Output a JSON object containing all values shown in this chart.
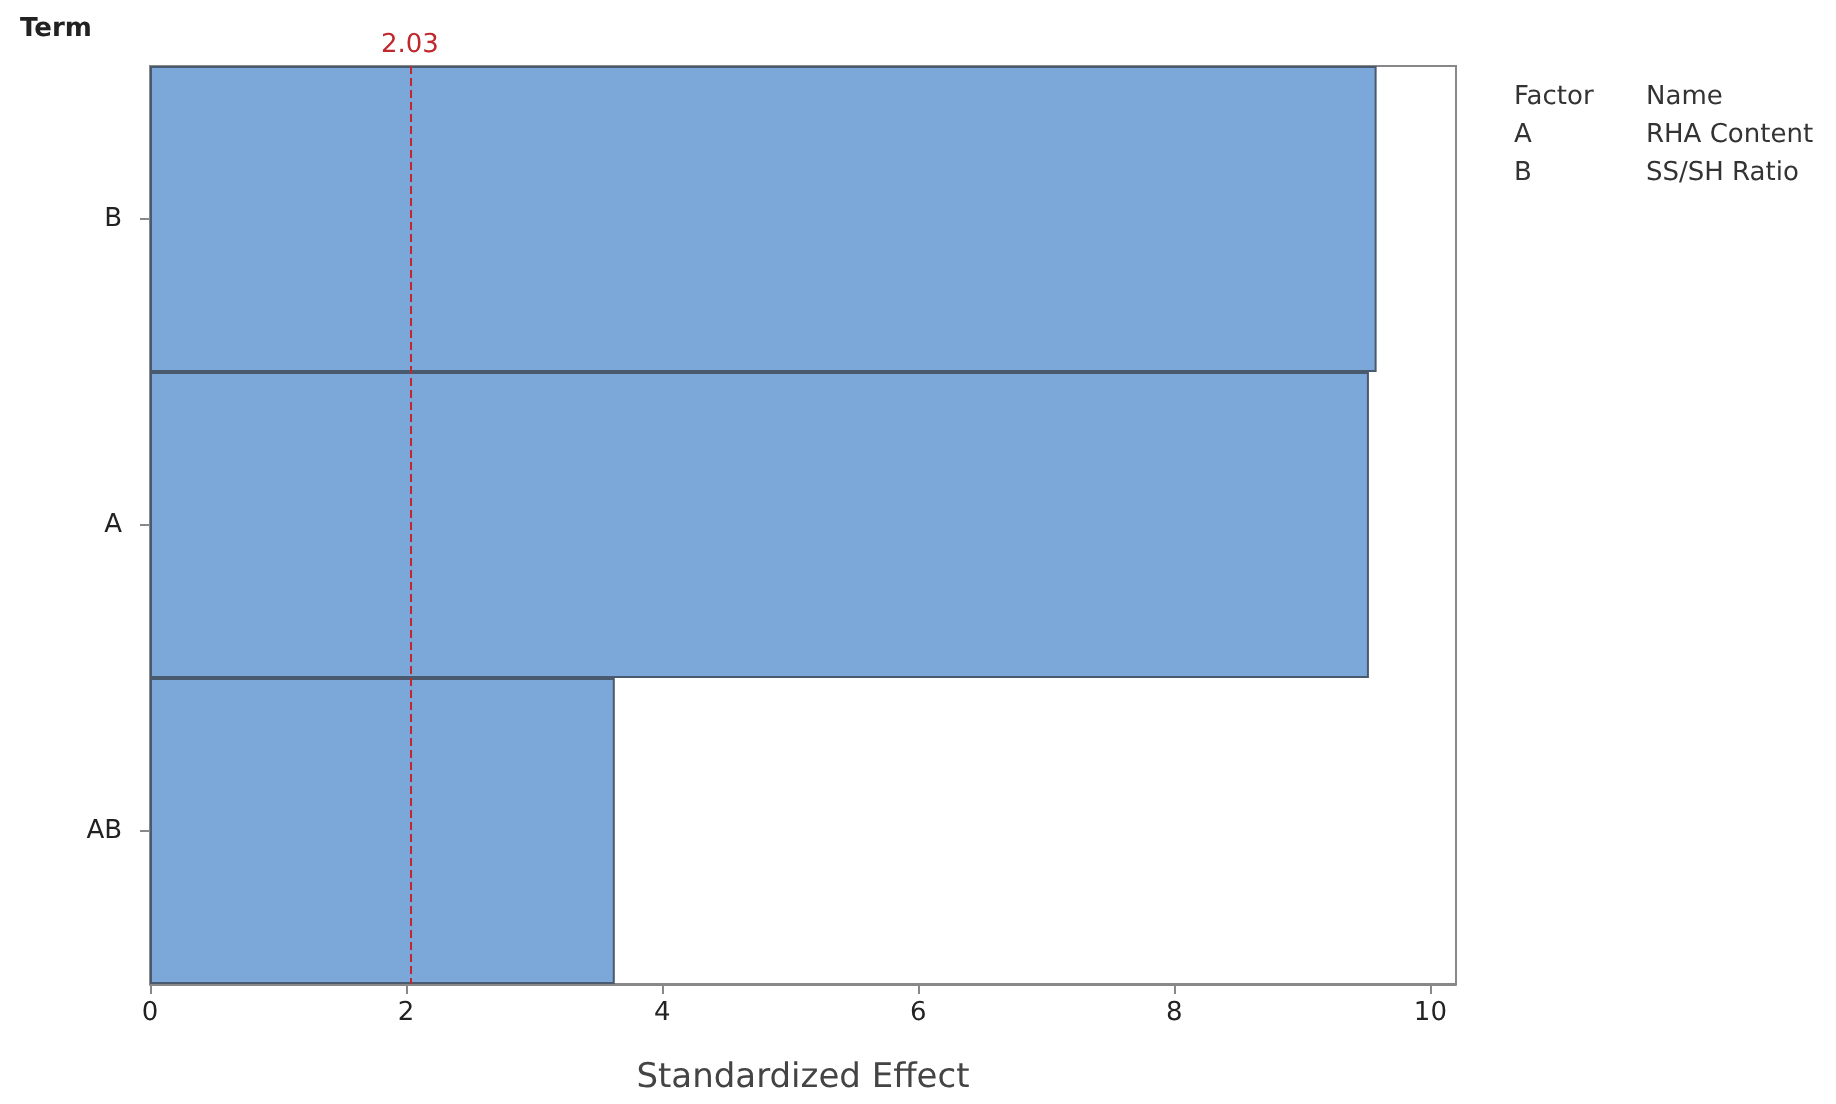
{
  "chart_data": {
    "type": "bar",
    "orientation": "horizontal",
    "ylabel": "Term",
    "xlabel": "Standardized Effect",
    "categories": [
      "B",
      "A",
      "AB"
    ],
    "values": [
      9.58,
      9.52,
      3.63
    ],
    "color": "#7ba7d9",
    "xlim": [
      0,
      10.2
    ],
    "xticks": [
      0,
      2,
      4,
      6,
      8,
      10
    ],
    "grid": false,
    "ref_lines": [
      {
        "axis": "x",
        "value": 2.03,
        "label": "2.03",
        "color": "#c0282d",
        "line_style": "dashed"
      }
    ],
    "annotations": [
      "Factor",
      "Name",
      "A",
      "RHA Content",
      "B",
      "SS/SH Ratio"
    ]
  }
}
